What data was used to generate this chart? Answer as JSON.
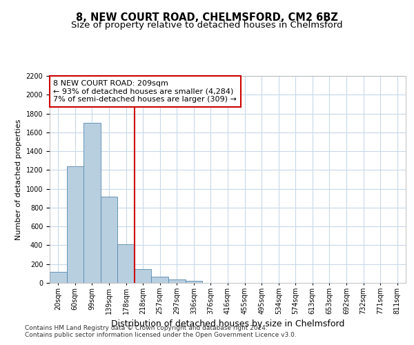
{
  "title": "8, NEW COURT ROAD, CHELMSFORD, CM2 6BZ",
  "subtitle": "Size of property relative to detached houses in Chelmsford",
  "xlabel": "Distribution of detached houses by size in Chelmsford",
  "ylabel": "Number of detached properties",
  "bar_labels": [
    "20sqm",
    "60sqm",
    "99sqm",
    "139sqm",
    "178sqm",
    "218sqm",
    "257sqm",
    "297sqm",
    "336sqm",
    "376sqm",
    "416sqm",
    "455sqm",
    "495sqm",
    "534sqm",
    "574sqm",
    "613sqm",
    "653sqm",
    "692sqm",
    "732sqm",
    "771sqm",
    "811sqm"
  ],
  "bar_values": [
    115,
    1240,
    1700,
    920,
    410,
    150,
    65,
    40,
    25,
    0,
    0,
    0,
    0,
    0,
    0,
    0,
    0,
    0,
    0,
    0,
    0
  ],
  "bar_color": "#b8cfe0",
  "bar_edge_color": "#5588aa",
  "vline_idx": 5,
  "vline_color": "#cc0000",
  "annotation_text": "8 NEW COURT ROAD: 209sqm\n← 93% of detached houses are smaller (4,284)\n7% of semi-detached houses are larger (309) →",
  "annotation_box_color": "#cc0000",
  "ylim": [
    0,
    2200
  ],
  "yticks": [
    0,
    200,
    400,
    600,
    800,
    1000,
    1200,
    1400,
    1600,
    1800,
    2000,
    2200
  ],
  "footer1": "Contains HM Land Registry data © Crown copyright and database right 2024.",
  "footer2": "Contains public sector information licensed under the Open Government Licence v3.0.",
  "bg_color": "#ffffff",
  "grid_color": "#c8d8e8",
  "title_fontsize": 10.5,
  "subtitle_fontsize": 9.5,
  "ylabel_fontsize": 8,
  "xlabel_fontsize": 9,
  "annot_fontsize": 8,
  "tick_fontsize": 7,
  "footer_fontsize": 6.5
}
